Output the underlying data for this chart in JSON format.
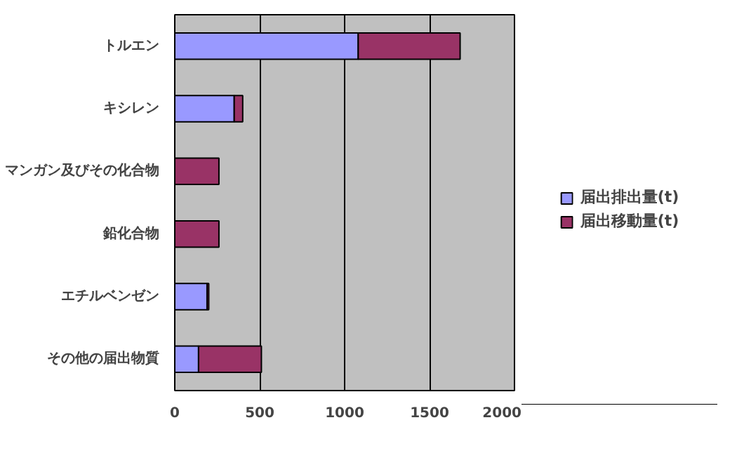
{
  "chart_data": {
    "type": "bar",
    "orientation": "horizontal",
    "stacked": true,
    "categories": [
      "トルエン",
      "キシレン",
      "マンガン及びその化合物",
      "鉛化合物",
      "エチルベンゼン",
      "その他の届出物質"
    ],
    "series": [
      {
        "name": "届出排出量(t)",
        "color": "#9999ff",
        "values": [
          1080,
          350,
          0,
          0,
          190,
          140
        ]
      },
      {
        "name": "届出移動量(t)",
        "color": "#993366",
        "values": [
          600,
          50,
          260,
          260,
          10,
          370
        ]
      }
    ],
    "xlim": [
      0,
      2000
    ],
    "xticks": [
      0,
      500,
      1000,
      1500,
      2000
    ],
    "grid": "x",
    "legend": "right"
  }
}
